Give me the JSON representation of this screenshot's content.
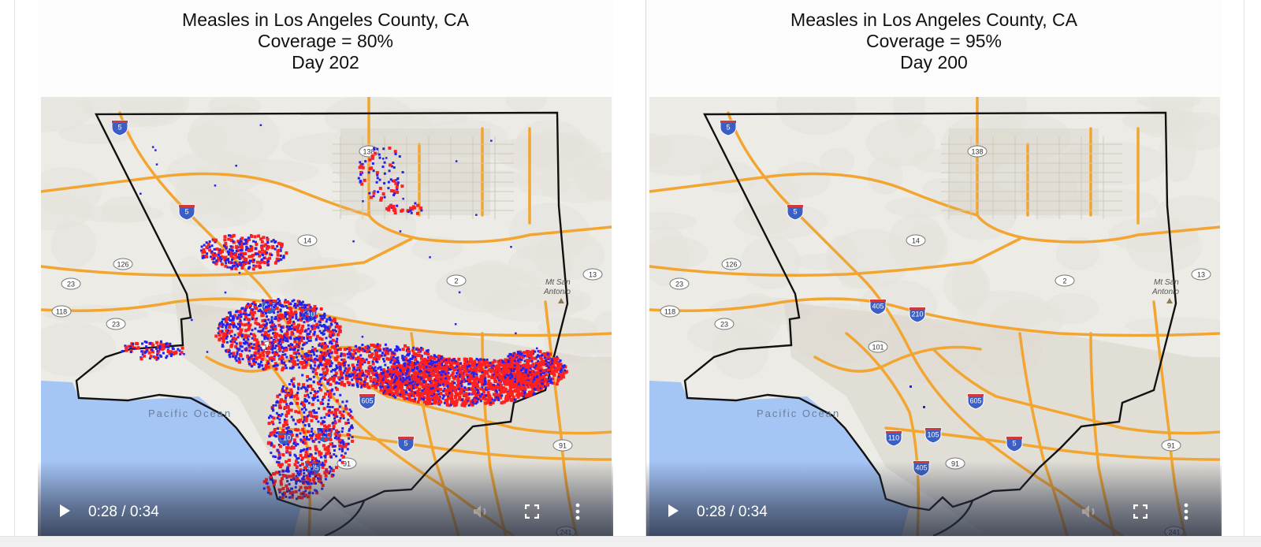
{
  "videos": [
    {
      "title_line1": "Measles in Los Angeles County, CA",
      "title_line2": "Coverage = 80%",
      "title_line3": "Day 202",
      "current_time": "0:28",
      "duration": "0:34",
      "time_display": "0:28 / 0:34"
    },
    {
      "title_line1": "Measles in Los Angeles County, CA",
      "title_line2": "Coverage = 95%",
      "title_line3": "Day 200",
      "current_time": "0:28",
      "duration": "0:34",
      "time_display": "0:28 / 0:34"
    }
  ],
  "map_labels": {
    "ocean": "Pacific Ocean",
    "mountain_line1": "Mt San",
    "mountain_line2": "Antonio",
    "highway_shields": [
      "5",
      "138",
      "14",
      "126",
      "23",
      "118",
      "2",
      "405",
      "210",
      "101",
      "110",
      "105",
      "91",
      "605",
      "241",
      "60",
      "13"
    ]
  },
  "colors": {
    "case_red": "#ff2020",
    "case_blue": "#2222ee",
    "county_border": "#111111",
    "highway": "#f2a531",
    "land": "#ecebe6",
    "ocean": "#a5c5f5",
    "urban": "#d8d3c8"
  },
  "icons": {
    "play": "play-icon",
    "volume": "volume-icon",
    "fullscreen": "fullscreen-icon",
    "menu": "more-vertical-icon"
  }
}
